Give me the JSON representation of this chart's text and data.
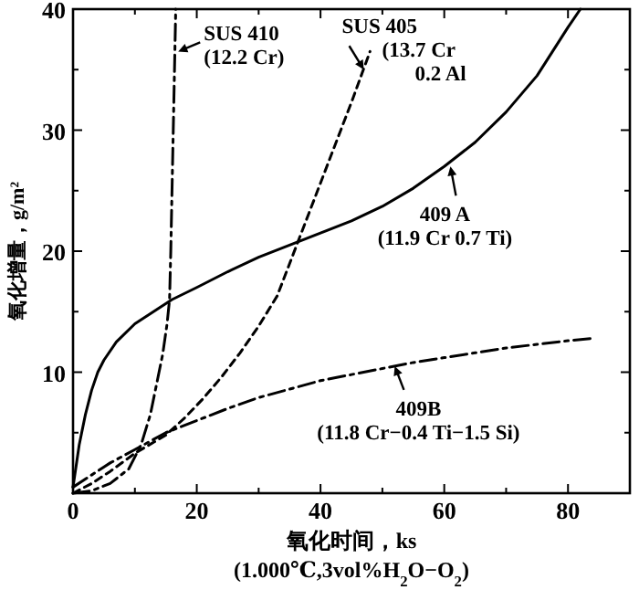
{
  "chart_data": {
    "type": "line",
    "xlabel": "氧化时间，ks",
    "ylabel": "氧化增量，g/m²",
    "xlim": [
      0,
      90
    ],
    "ylim": [
      0,
      40
    ],
    "xticks": [
      0,
      {
        "value": 10,
        "label": null
      },
      20,
      {
        "value": 30,
        "label": null
      },
      40,
      {
        "value": 50,
        "label": null
      },
      60,
      {
        "value": 70,
        "label": null
      },
      80
    ],
    "yticks": [
      {
        "value": 0,
        "label": null
      },
      {
        "value": 5,
        "label": null
      },
      10,
      {
        "value": 15,
        "label": null
      },
      20,
      {
        "value": 25,
        "label": null
      },
      30,
      {
        "value": 35,
        "label": null
      },
      40
    ],
    "grid": false,
    "marker": "none",
    "series": [
      {
        "color": "#000000",
        "line_style": "solid",
        "x": [
          0,
          1,
          2,
          3,
          4,
          5,
          7,
          10,
          13,
          16,
          20,
          25,
          30,
          35,
          40,
          45,
          50,
          55,
          60,
          65,
          70,
          75,
          80,
          82
        ],
        "values": [
          0.5,
          4,
          6.5,
          8.5,
          10,
          11,
          12.5,
          14,
          15,
          16,
          17,
          18.3,
          19.5,
          20.5,
          21.5,
          22.5,
          23.7,
          25.2,
          27,
          29,
          31.5,
          34.5,
          38.5,
          40
        ]
      },
      {
        "color": "#000000",
        "line_style": "dashdot",
        "x": [
          0,
          3,
          6,
          10,
          15,
          20,
          25,
          30,
          35,
          40,
          45,
          50,
          55,
          60,
          65,
          70,
          75,
          80,
          84
        ],
        "values": [
          0.5,
          1.5,
          2.5,
          3.6,
          5,
          6,
          7,
          7.9,
          8.6,
          9.3,
          9.8,
          10.3,
          10.8,
          11.2,
          11.6,
          12,
          12.3,
          12.6,
          12.8
        ]
      },
      {
        "color": "#000000",
        "line_style": "dashdot",
        "x": [
          0,
          3,
          6,
          9,
          11,
          12.5,
          13.5,
          14.5,
          15.2,
          15.6,
          15.8,
          16,
          16.2,
          16.4,
          16.6
        ],
        "values": [
          0,
          0.2,
          0.8,
          2,
          4,
          6.5,
          9,
          11.5,
          14,
          16,
          20,
          25,
          30,
          35,
          40
        ]
      },
      {
        "color": "#000000",
        "line_style": "dashed",
        "x": [
          0,
          3,
          6,
          10,
          15,
          18,
          21,
          24,
          27,
          30,
          33,
          36,
          39,
          42,
          45,
          48
        ],
        "values": [
          0,
          0.8,
          1.8,
          3.3,
          4.8,
          6.2,
          7.8,
          9.6,
          11.6,
          13.8,
          16.3,
          20.3,
          24.3,
          28.3,
          32.3,
          36.5
        ]
      }
    ],
    "annotations": [
      {
        "text": "SUS 410\n(12.2 Cr)",
        "x": 17,
        "y": 36.5
      },
      {
        "text": "SUS 405\n(13.7 Cr\n0.2 Al",
        "x": 47,
        "y": 35
      },
      {
        "text": "409 A\n(11.9 Cr 0.7 Ti)",
        "x": 61,
        "y": 27
      },
      {
        "text": "409B\n(11.8 Cr−0.4 Ti−1.5 Si)",
        "x": 52,
        "y": 10.5
      },
      "(1.000℃,3vol%H$_{2}$O−O$_{2}$)"
    ]
  }
}
